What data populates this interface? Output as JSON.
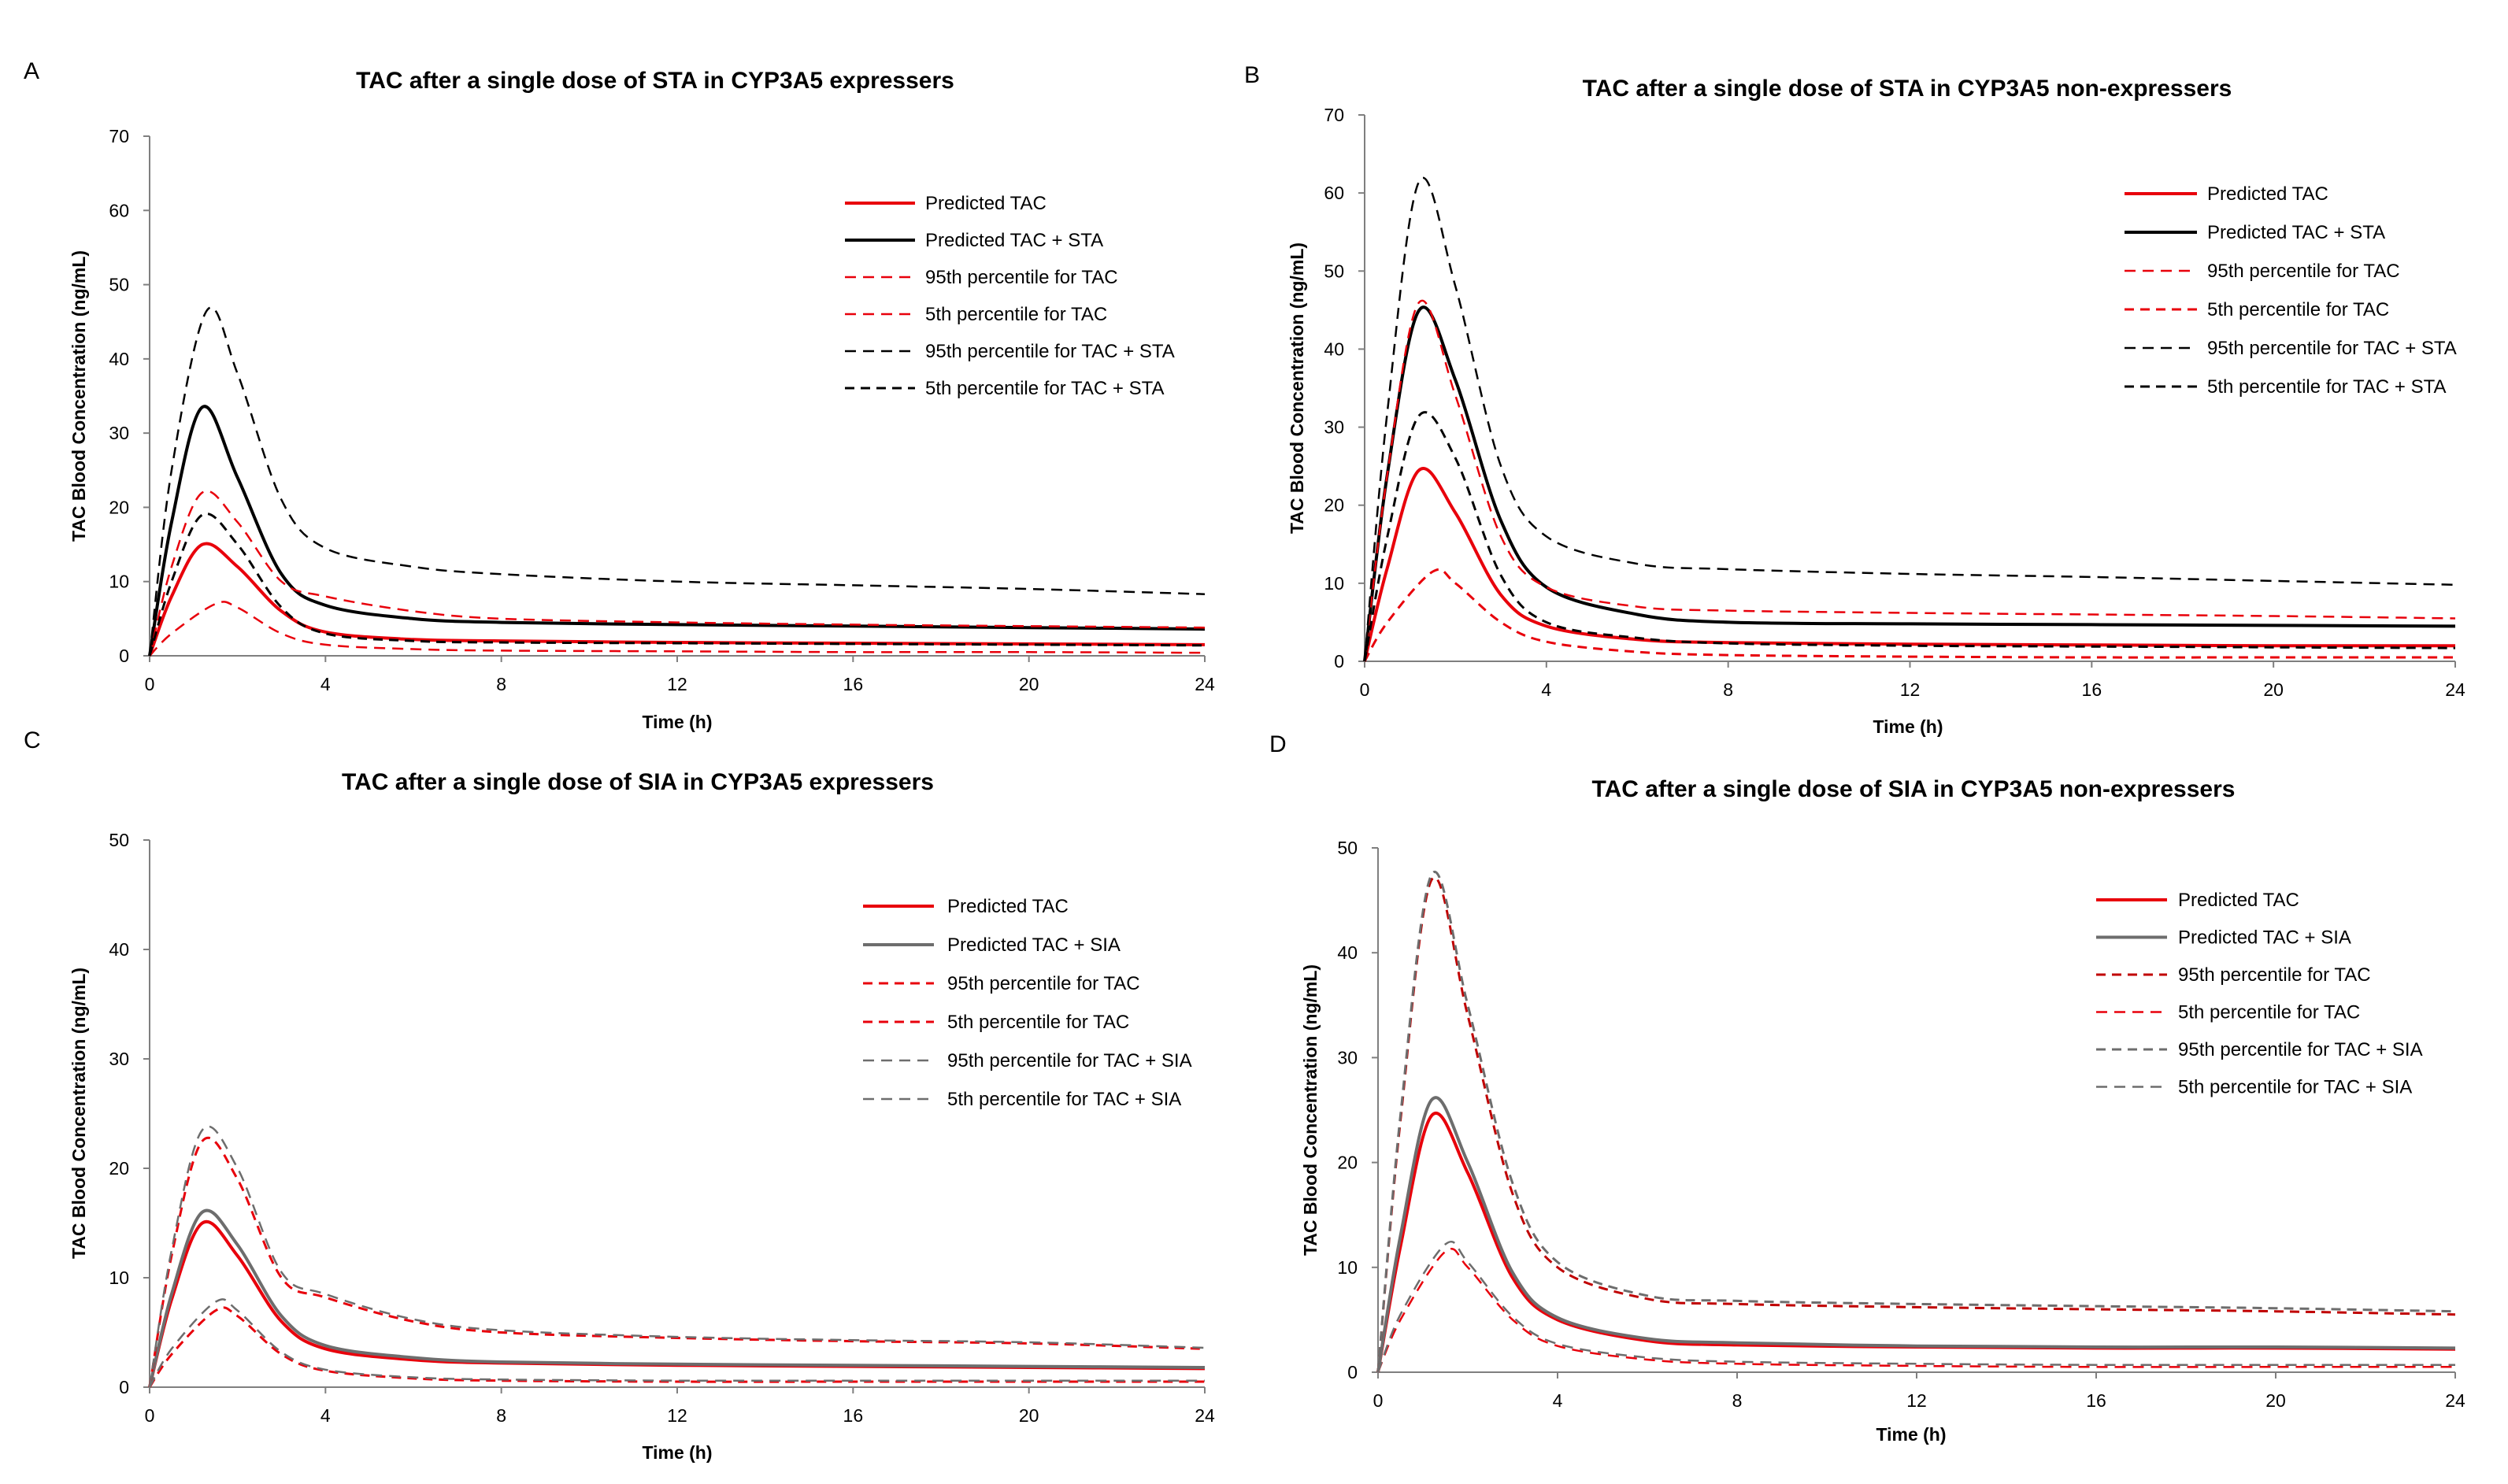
{
  "figure": {
    "panel_letters": [
      "A",
      "B",
      "C",
      "D"
    ]
  },
  "colors": {
    "red": "#e8000b",
    "black": "#000000",
    "gray": "#6d6d6d",
    "red_dark": "#c00000",
    "axis": "#7f7f7f"
  },
  "chart_data": [
    {
      "type": "line",
      "panel": "A",
      "title": "TAC after a single dose of STA in CYP3A5 expressers",
      "xlabel": "Time (h)",
      "ylabel": "TAC Blood Concentration (ng/mL)",
      "xlim": [
        0,
        24
      ],
      "ylim": [
        0,
        70
      ],
      "x_ticks": [
        0,
        4,
        8,
        12,
        16,
        20,
        24
      ],
      "y_ticks": [
        0,
        10,
        20,
        30,
        40,
        50,
        60,
        70
      ],
      "x_tick_labels": [
        "0",
        "4",
        "8",
        "12",
        "16",
        "20",
        "24"
      ],
      "y_tick_labels": [
        "0",
        "10",
        "20",
        "30",
        "40",
        "50",
        "60",
        "70"
      ],
      "legend_position": "right",
      "series": [
        {
          "name": "Predicted TAC",
          "color": "#e8000b",
          "width": 4,
          "dash": "",
          "x": [
            0,
            0.5,
            1.2,
            2,
            3,
            4,
            6,
            8,
            12,
            16,
            20,
            24
          ],
          "values": [
            0,
            8,
            15,
            12,
            6,
            3.2,
            2.2,
            2,
            1.8,
            1.7,
            1.6,
            1.5
          ]
        },
        {
          "name": "Predicted TAC + STA",
          "color": "#000000",
          "width": 4,
          "dash": "",
          "x": [
            0,
            0.5,
            1.2,
            2,
            3,
            4,
            6,
            8,
            12,
            16,
            20,
            24
          ],
          "values": [
            0,
            18,
            33.5,
            24,
            11,
            6.8,
            5,
            4.5,
            4.2,
            4,
            3.8,
            3.6
          ]
        },
        {
          "name": "95th percentile for TAC",
          "color": "#e8000b",
          "width": 2.5,
          "dash": "14,9",
          "x": [
            0,
            0.5,
            1.2,
            2,
            3,
            4,
            6,
            8,
            12,
            16,
            20,
            24
          ],
          "values": [
            0,
            12,
            22,
            18,
            10,
            8,
            6,
            5,
            4.5,
            4.2,
            4,
            3.8
          ]
        },
        {
          "name": "5th percentile for TAC",
          "color": "#e8000b",
          "width": 2.5,
          "dash": "14,9",
          "x": [
            0,
            0.5,
            1.5,
            2,
            3,
            4,
            6,
            8,
            12,
            16,
            20,
            24
          ],
          "values": [
            0,
            3,
            7,
            6.5,
            3,
            1.5,
            0.9,
            0.7,
            0.6,
            0.5,
            0.5,
            0.4
          ]
        },
        {
          "name": "95th percentile for TAC + STA",
          "color": "#000000",
          "width": 2.5,
          "dash": "14,9",
          "x": [
            0,
            0.5,
            1.3,
            2,
            3,
            4,
            6,
            8,
            12,
            16,
            20,
            24
          ],
          "values": [
            0,
            25,
            46.5,
            38,
            21,
            14.5,
            12,
            11,
            10,
            9.5,
            9,
            8.3
          ]
        },
        {
          "name": "5th percentile for TAC + STA",
          "color": "#000000",
          "width": 3,
          "dash": "12,8",
          "x": [
            0,
            0.5,
            1.2,
            2,
            3,
            4,
            6,
            8,
            12,
            16,
            20,
            24
          ],
          "values": [
            0,
            10,
            19,
            15,
            6.5,
            3,
            2,
            1.8,
            1.7,
            1.6,
            1.5,
            1.4
          ]
        }
      ]
    },
    {
      "type": "line",
      "panel": "B",
      "title": "TAC after a single dose of STA in CYP3A5 non-expressers",
      "xlabel": "Time  (h)",
      "ylabel": "TAC Blood Concentration (ng/mL)",
      "xlim": [
        0,
        24
      ],
      "ylim": [
        0,
        70
      ],
      "x_ticks": [
        0,
        4,
        8,
        12,
        16,
        20,
        24
      ],
      "y_ticks": [
        0,
        10,
        20,
        30,
        40,
        50,
        60,
        70
      ],
      "x_tick_labels": [
        "0",
        "4",
        "8",
        "12",
        "16",
        "20",
        "24"
      ],
      "y_tick_labels": [
        "0",
        "10",
        "20",
        "30",
        "40",
        "50",
        "60",
        "70"
      ],
      "legend_position": "right",
      "series": [
        {
          "name": "Predicted TAC",
          "color": "#e8000b",
          "width": 4,
          "dash": "",
          "x": [
            0,
            0.5,
            1.2,
            2,
            3,
            4,
            6,
            8,
            12,
            16,
            20,
            24
          ],
          "values": [
            0,
            12,
            24.5,
            19,
            8.5,
            4.5,
            2.8,
            2.4,
            2.2,
            2.1,
            2,
            2
          ]
        },
        {
          "name": "Predicted TAC + STA",
          "color": "#000000",
          "width": 4,
          "dash": "",
          "x": [
            0,
            0.5,
            1.2,
            2,
            3,
            4,
            6,
            8,
            12,
            16,
            20,
            24
          ],
          "values": [
            0,
            24,
            45,
            36,
            18,
            9.5,
            6,
            5,
            4.8,
            4.7,
            4.6,
            4.5
          ]
        },
        {
          "name": "95th percentile for TAC",
          "color": "#e8000b",
          "width": 2.5,
          "dash": "14,9",
          "x": [
            0,
            0.5,
            1.2,
            2,
            3,
            4,
            6,
            8,
            12,
            16,
            20,
            24
          ],
          "values": [
            0,
            24,
            46,
            34,
            16,
            9.5,
            7,
            6.5,
            6.2,
            6,
            5.8,
            5.5
          ]
        },
        {
          "name": "5th percentile for TAC",
          "color": "#e8000b",
          "width": 3,
          "dash": "12,8",
          "x": [
            0,
            0.5,
            1.5,
            2,
            3,
            4,
            6,
            8,
            12,
            16,
            20,
            24
          ],
          "values": [
            0,
            5,
            11.5,
            10,
            5,
            2.5,
            1.2,
            0.8,
            0.6,
            0.5,
            0.5,
            0.5
          ]
        },
        {
          "name": "95th percentile for TAC + STA",
          "color": "#000000",
          "width": 2.5,
          "dash": "14,9",
          "x": [
            0,
            0.5,
            1.2,
            2,
            3,
            4,
            6,
            8,
            12,
            16,
            20,
            24
          ],
          "values": [
            0,
            32,
            61.5,
            48,
            25,
            16,
            12.5,
            11.8,
            11.2,
            10.8,
            10.3,
            9.8
          ]
        },
        {
          "name": "5th percentile for TAC + STA",
          "color": "#000000",
          "width": 3,
          "dash": "12,8",
          "x": [
            0,
            0.5,
            1.2,
            2,
            3,
            4,
            6,
            8,
            12,
            16,
            20,
            24
          ],
          "values": [
            0,
            16,
            31.5,
            26,
            11,
            5,
            3,
            2.3,
            2,
            1.9,
            1.8,
            1.7
          ]
        }
      ]
    },
    {
      "type": "line",
      "panel": "C",
      "title": "TAC after a single dose of SIA in CYP3A5 expressers",
      "xlabel": "Time (h)",
      "ylabel": "TAC Blood Concentration (ng/mL)",
      "xlim": [
        0,
        24
      ],
      "ylim": [
        0,
        50
      ],
      "x_ticks": [
        0,
        4,
        8,
        12,
        16,
        20,
        24
      ],
      "y_ticks": [
        0,
        10,
        20,
        30,
        40,
        50
      ],
      "x_tick_labels": [
        "0",
        "4",
        "8",
        "12",
        "16",
        "20",
        "24"
      ],
      "y_tick_labels": [
        "0",
        "10",
        "20",
        "30",
        "40",
        "50"
      ],
      "legend_position": "right",
      "series": [
        {
          "name": "Predicted TAC",
          "color": "#e8000b",
          "width": 4,
          "dash": "",
          "x": [
            0,
            0.5,
            1.2,
            2,
            3,
            4,
            6,
            8,
            12,
            16,
            20,
            24
          ],
          "values": [
            0,
            8,
            15,
            12,
            6,
            3.5,
            2.5,
            2.2,
            2,
            1.9,
            1.8,
            1.7
          ]
        },
        {
          "name": "Predicted TAC + SIA",
          "color": "#6d6d6d",
          "width": 4,
          "dash": "",
          "x": [
            0,
            0.5,
            1.2,
            2,
            3,
            4,
            6,
            8,
            12,
            16,
            20,
            24
          ],
          "values": [
            0,
            8.5,
            16,
            13,
            6.5,
            3.8,
            2.7,
            2.3,
            2.1,
            2,
            1.9,
            1.8
          ]
        },
        {
          "name": "95th percentile for TAC",
          "color": "#e8000b",
          "width": 3,
          "dash": "12,8",
          "x": [
            0,
            0.5,
            1.2,
            2,
            3,
            4,
            6,
            8,
            12,
            16,
            20,
            24
          ],
          "values": [
            0,
            12,
            22.5,
            19,
            10,
            8.2,
            6,
            5,
            4.5,
            4.2,
            4,
            3.5
          ]
        },
        {
          "name": "5th percentile for TAC",
          "color": "#e8000b",
          "width": 3,
          "dash": "12,8",
          "x": [
            0,
            0.5,
            1.5,
            2,
            3,
            4,
            6,
            8,
            12,
            16,
            20,
            24
          ],
          "values": [
            0,
            3,
            7,
            6.5,
            3,
            1.5,
            0.8,
            0.6,
            0.5,
            0.5,
            0.5,
            0.5
          ]
        },
        {
          "name": "95th percentile for TAC + SIA",
          "color": "#6d6d6d",
          "width": 2.5,
          "dash": "14,9",
          "x": [
            0,
            0.5,
            1.2,
            2,
            3,
            4,
            6,
            8,
            12,
            16,
            20,
            24
          ],
          "values": [
            0,
            12.5,
            23.5,
            20,
            10.5,
            8.5,
            6.2,
            5.2,
            4.6,
            4.3,
            4.1,
            3.6
          ]
        },
        {
          "name": "5th percentile for TAC + SIA",
          "color": "#6d6d6d",
          "width": 2.5,
          "dash": "14,9",
          "x": [
            0,
            0.5,
            1.5,
            2,
            3,
            4,
            6,
            8,
            12,
            16,
            20,
            24
          ],
          "values": [
            0,
            3.5,
            7.8,
            7,
            3.2,
            1.6,
            0.9,
            0.7,
            0.6,
            0.6,
            0.6,
            0.6
          ]
        }
      ]
    },
    {
      "type": "line",
      "panel": "D",
      "title": "TAC after a single dose of SIA in CYP3A5 non-expressers",
      "xlabel": "Time (h)",
      "ylabel": "TAC Blood Concentration (ng/mL)",
      "xlim": [
        0,
        24
      ],
      "ylim": [
        0,
        50
      ],
      "x_ticks": [
        0,
        4,
        8,
        12,
        16,
        20,
        24
      ],
      "y_ticks": [
        0,
        10,
        20,
        30,
        40,
        50
      ],
      "x_tick_labels": [
        "0",
        "4",
        "8",
        "12",
        "16",
        "20",
        "24"
      ],
      "y_tick_labels": [
        "0",
        "10",
        "20",
        "30",
        "40",
        "50"
      ],
      "legend_position": "right",
      "series": [
        {
          "name": "Predicted TAC",
          "color": "#e8000b",
          "width": 4,
          "dash": "",
          "x": [
            0,
            0.5,
            1.2,
            2,
            3,
            4,
            6,
            8,
            12,
            16,
            20,
            24
          ],
          "values": [
            0,
            12,
            24.5,
            19,
            9,
            5,
            3,
            2.6,
            2.4,
            2.3,
            2.3,
            2.2
          ]
        },
        {
          "name": "Predicted TAC + SIA",
          "color": "#6d6d6d",
          "width": 4,
          "dash": "",
          "x": [
            0,
            0.5,
            1.2,
            2,
            3,
            4,
            6,
            8,
            12,
            16,
            20,
            24
          ],
          "values": [
            0,
            13,
            26,
            20,
            9.5,
            5.2,
            3.2,
            2.8,
            2.5,
            2.4,
            2.4,
            2.3
          ]
        },
        {
          "name": "95th percentile for TAC",
          "color": "#c00000",
          "width": 3,
          "dash": "12,8",
          "x": [
            0,
            0.5,
            1.2,
            2,
            3,
            4,
            6,
            8,
            12,
            16,
            20,
            24
          ],
          "values": [
            0,
            24,
            47,
            34,
            17,
            10,
            7,
            6.5,
            6.2,
            6,
            5.8,
            5.5
          ]
        },
        {
          "name": "5th percentile for TAC",
          "color": "#e8000b",
          "width": 2.5,
          "dash": "14,9",
          "x": [
            0,
            0.5,
            1.5,
            2,
            3,
            4,
            6,
            8,
            12,
            16,
            20,
            24
          ],
          "values": [
            0,
            5,
            11.5,
            10,
            5,
            2.5,
            1.2,
            0.8,
            0.6,
            0.5,
            0.5,
            0.5
          ]
        },
        {
          "name": "95th percentile for TAC + SIA",
          "color": "#6d6d6d",
          "width": 3,
          "dash": "12,8",
          "x": [
            0,
            0.5,
            1.2,
            2,
            3,
            4,
            6,
            8,
            12,
            16,
            20,
            24
          ],
          "values": [
            0,
            24.5,
            47.5,
            35,
            18,
            10.5,
            7.3,
            6.8,
            6.5,
            6.3,
            6.1,
            5.8
          ]
        },
        {
          "name": "5th percentile for TAC + SIA",
          "color": "#6d6d6d",
          "width": 2.5,
          "dash": "14,9",
          "x": [
            0,
            0.5,
            1.5,
            2,
            3,
            4,
            6,
            8,
            12,
            16,
            20,
            24
          ],
          "values": [
            0,
            5.5,
            12.2,
            10.5,
            5.3,
            2.7,
            1.4,
            1,
            0.8,
            0.7,
            0.7,
            0.7
          ]
        }
      ]
    }
  ]
}
